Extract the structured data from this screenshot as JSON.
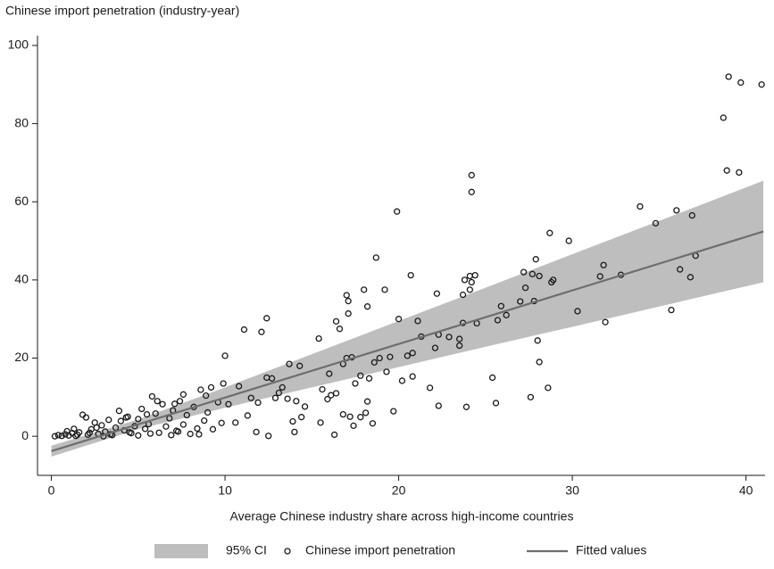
{
  "chart_data": {
    "type": "scatter",
    "title": "Chinese import penetration (industry-year)",
    "x_label": "Average Chinese industry share across high-income countries",
    "xlim": [
      -0.8,
      41.1
    ],
    "ylim": [
      -10,
      102.5
    ],
    "xticks": [
      0,
      10,
      20,
      30,
      40
    ],
    "yticks": [
      0,
      20,
      40,
      60,
      80,
      100
    ],
    "grid": false,
    "legend": "bottom",
    "series": [
      {
        "name": "95% CI",
        "type": "band",
        "color": "#bebebe",
        "x": [
          0,
          5,
          10,
          15,
          20,
          25,
          30,
          35,
          41
        ],
        "lower": [
          -5.2,
          1.8,
          7.3,
          12.5,
          17.7,
          22.9,
          28.0,
          33.2,
          39.4
        ],
        "upper": [
          -2.4,
          4.3,
          12.5,
          21.0,
          29.5,
          38.0,
          46.6,
          55.1,
          65.4
        ]
      },
      {
        "name": "Chinese import penetration",
        "type": "scatter",
        "color": "#1a1a1a",
        "x": [
          39.0,
          39.7,
          40.9,
          38.7,
          38.9,
          39.6,
          24.2,
          24.2,
          19.9,
          33.9,
          36.0,
          36.9,
          34.8,
          28.7,
          29.8,
          37.1,
          36.2,
          36.8,
          35.7,
          31.8,
          31.6,
          32.8,
          31.9,
          30.3,
          28.8,
          28.9,
          27.9,
          27.7,
          27.2,
          28.1,
          27.3,
          27.8,
          27.0,
          26.2,
          25.7,
          25.9,
          24.1,
          24.4,
          24.2,
          24.1,
          23.7,
          23.8,
          23.7,
          23.5,
          23.5,
          24.5,
          22.9,
          22.2,
          22.3,
          22.1,
          21.3,
          21.1,
          21.8,
          22.3,
          20.7,
          20.0,
          20.5,
          20.8,
          20.2,
          20.8,
          27.6,
          28.1,
          28.6,
          28.0,
          25.4,
          25.6,
          23.9,
          19.2,
          18.7,
          18.2,
          18.0,
          18.9,
          19.3,
          19.5,
          19.7,
          18.3,
          18.6,
          17.3,
          17.1,
          17.1,
          17.0,
          16.4,
          16.6,
          15.4,
          16.8,
          17.0,
          16.0,
          16.4,
          16.1,
          16.3,
          16.8,
          17.2,
          17.4,
          17.8,
          18.1,
          18.2,
          18.5,
          17.8,
          17.5,
          15.6,
          15.9,
          15.5,
          14.6,
          14.3,
          13.7,
          13.6,
          13.3,
          14.1,
          14.4,
          14.0,
          13.9,
          12.4,
          12.1,
          11.1,
          12.4,
          12.7,
          13.1,
          12.9,
          10.0,
          9.9,
          10.8,
          11.5,
          11.9,
          11.3,
          11.8,
          12.5,
          10.6,
          10.2,
          9.2,
          0.2,
          0.4,
          0.6,
          0.8,
          1.0,
          1.2,
          1.4,
          1.6,
          1.8,
          2.0,
          2.1,
          2.3,
          2.5,
          2.7,
          2.9,
          3.1,
          3.3,
          3.5,
          3.7,
          3.9,
          4.0,
          4.2,
          4.4,
          4.6,
          4.8,
          5.0,
          5.2,
          5.4,
          5.6,
          5.8,
          6.0,
          6.2,
          6.4,
          6.6,
          6.8,
          7.0,
          7.2,
          7.4,
          7.6,
          7.8,
          8.0,
          8.2,
          8.4,
          8.6,
          8.8,
          9.0,
          9.3,
          9.6,
          9.8,
          6.1,
          7.6,
          5.0,
          3.0,
          1.3,
          0.9,
          4.3,
          2.6,
          5.5,
          7.1,
          8.9,
          1.5,
          2.2,
          3.4,
          4.5,
          5.7,
          6.9,
          7.3,
          8.5
        ],
        "values": [
          92,
          90.5,
          90,
          81.5,
          68,
          67.5,
          66.8,
          62.5,
          57.5,
          58.8,
          57.8,
          56.5,
          54.5,
          52,
          50,
          46.2,
          42.7,
          40.7,
          32.3,
          43.8,
          40.9,
          41.3,
          29.2,
          32,
          39.4,
          40,
          45.3,
          41.5,
          42,
          41.0,
          38,
          34.6,
          34.5,
          31,
          29.7,
          33.3,
          41,
          41.2,
          39.4,
          37.5,
          36.2,
          40.0,
          29.0,
          24.9,
          23.2,
          28.9,
          25.4,
          36.5,
          26,
          22.6,
          25.5,
          29.5,
          12.4,
          7.8,
          41.2,
          30,
          20.6,
          21.3,
          14.2,
          15.3,
          10,
          19,
          12.4,
          24.5,
          15,
          8.5,
          7.5,
          37.5,
          45.7,
          33.2,
          37.5,
          20,
          16.5,
          20.3,
          6.4,
          14.8,
          18.9,
          20.2,
          31.4,
          34.6,
          36.1,
          29.4,
          27.5,
          25,
          18.5,
          20,
          16,
          11,
          10.5,
          0.4,
          5.6,
          5.0,
          2.7,
          4.9,
          6,
          8.9,
          3.3,
          15.5,
          13.5,
          12,
          9.5,
          3.5,
          7.6,
          18,
          18.5,
          9.6,
          12.5,
          9.0,
          4.9,
          1.1,
          3.8,
          30.2,
          26.7,
          27.3,
          15,
          14.8,
          11.1,
          9.8,
          20.6,
          13.5,
          12.8,
          9.8,
          8.6,
          5.3,
          1.1,
          0.1,
          3.5,
          8.2,
          12.5,
          0,
          0.3,
          0.1,
          0.5,
          0.2,
          0.8,
          0.1,
          1.0,
          5.5,
          4.8,
          0.4,
          1.8,
          3.5,
          0.6,
          2.8,
          1.2,
          4.2,
          0.3,
          2.2,
          6.5,
          3.9,
          1.5,
          5.0,
          0.8,
          2.6,
          4.4,
          7.0,
          1.9,
          3.1,
          10.2,
          5.8,
          0.9,
          8.2,
          2.5,
          4.6,
          6.6,
          1.4,
          9.0,
          3.0,
          5.4,
          0.6,
          7.5,
          2.0,
          11.9,
          4.0,
          6.1,
          1.8,
          8.7,
          3.4,
          9.0,
          10.7,
          0.2,
          0.0,
          1.9,
          1.3,
          4.8,
          2.2,
          5.6,
          8.3,
          10.4,
          0.4,
          0.9,
          0.5,
          1.0,
          0.7,
          0.3,
          1.2,
          0.5
        ]
      },
      {
        "name": "Fitted values",
        "type": "line",
        "color": "#6e6e6e",
        "x": [
          0,
          41
        ],
        "values": [
          -3.8,
          52.4
        ]
      }
    ]
  }
}
